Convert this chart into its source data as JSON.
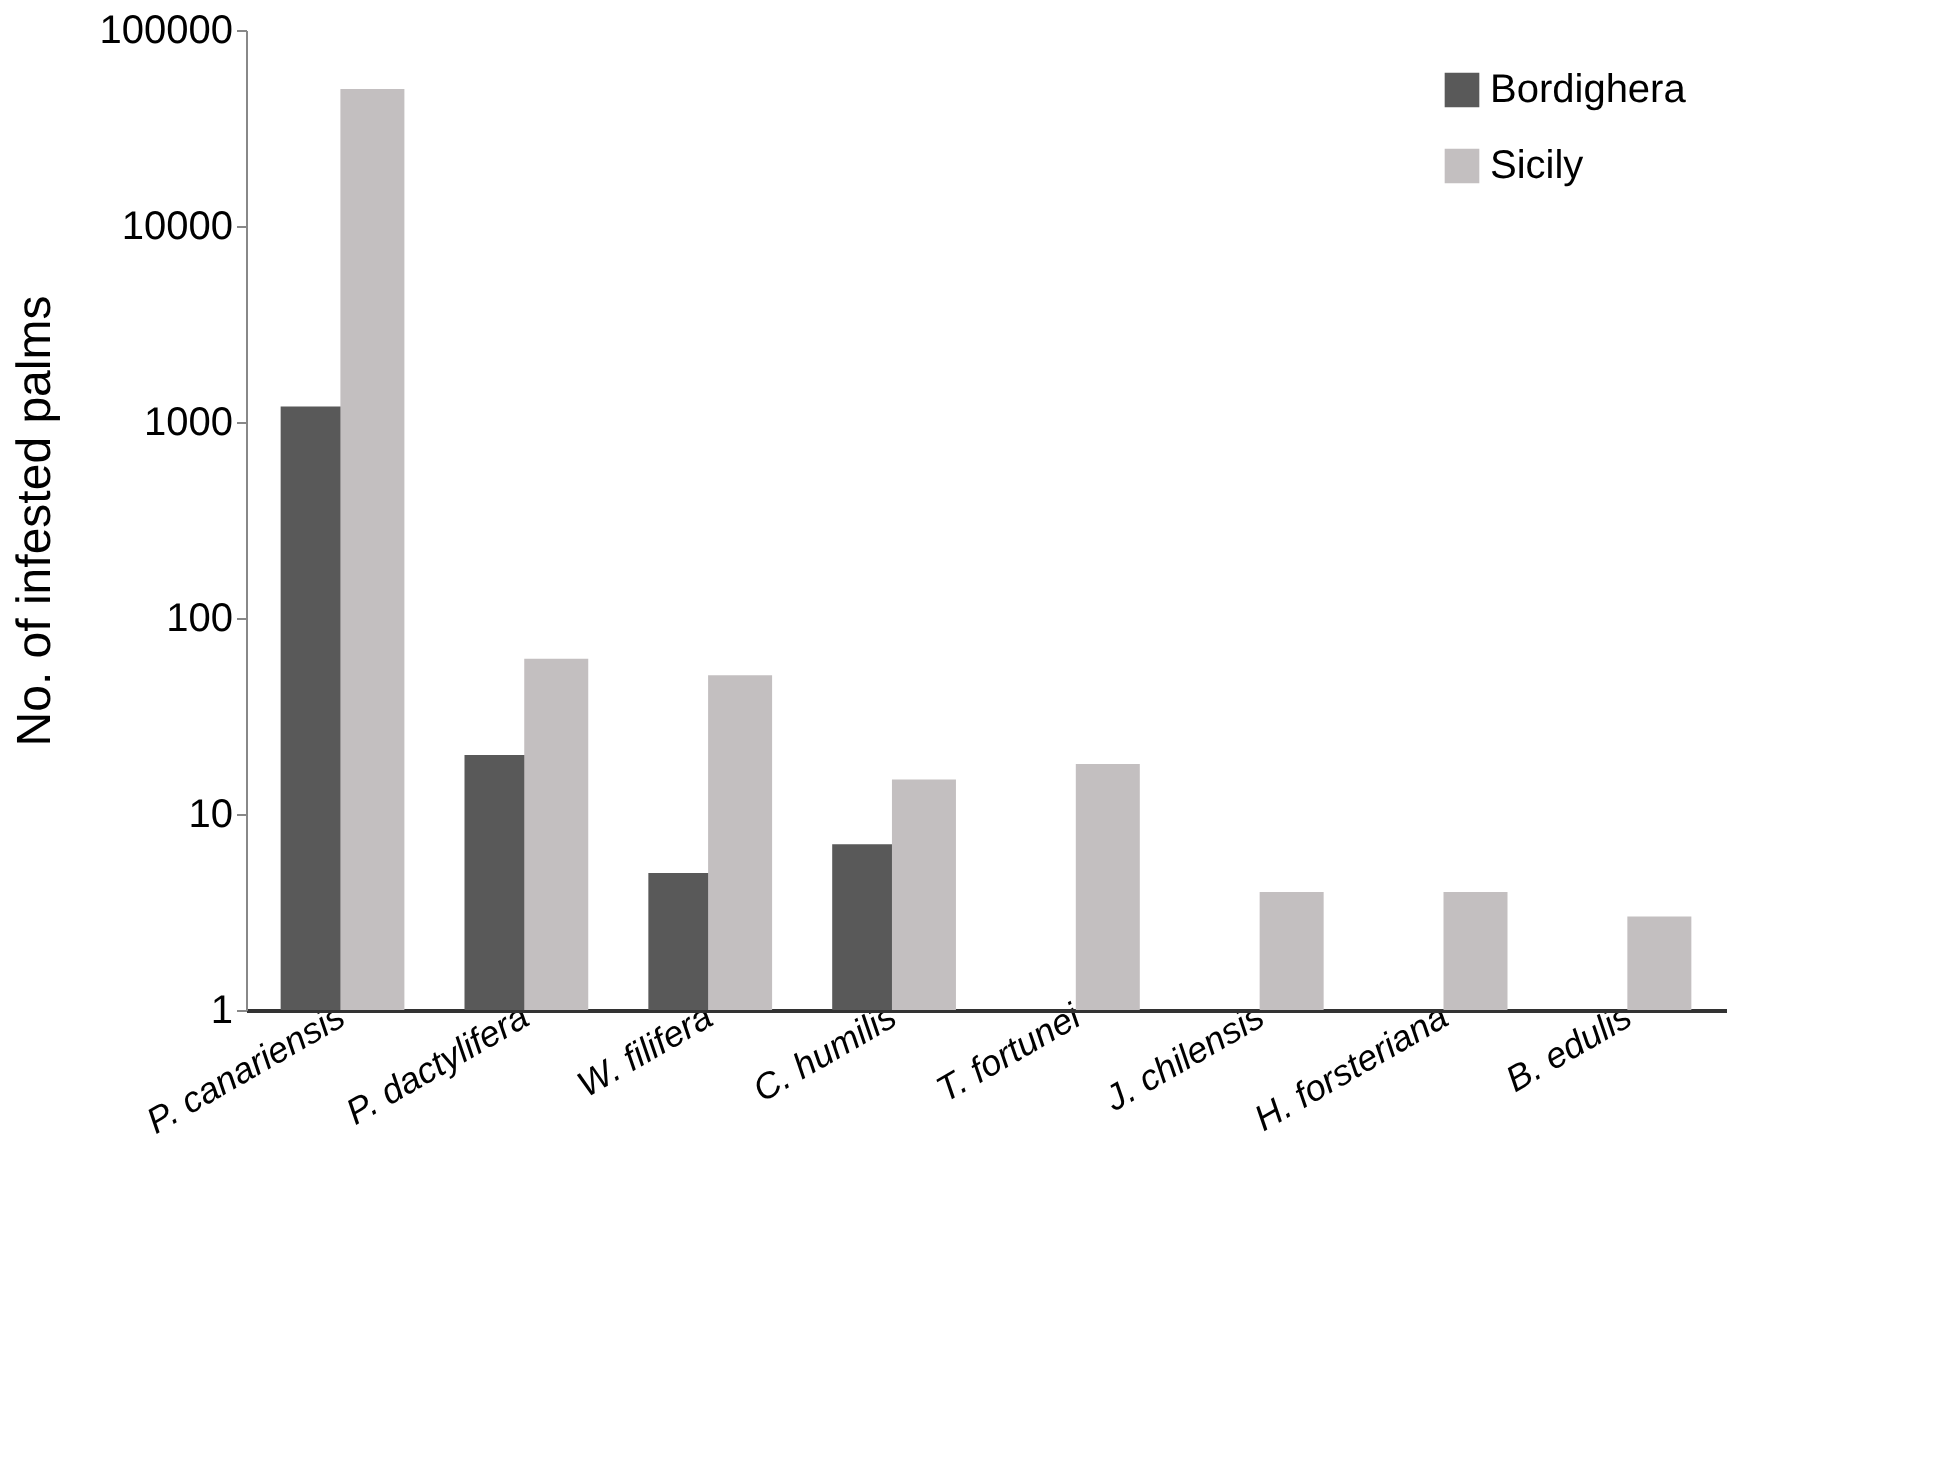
{
  "chart_data": {
    "type": "bar",
    "ylabel": "No. of infested palms",
    "categories": [
      "P. canariensis",
      "P. dactylifera",
      "W. filifera",
      "C. humilis",
      "T. fortunei",
      "J. chilensis",
      "H. forsteriana",
      "B. edulis"
    ],
    "series": [
      {
        "name": "Bordighera",
        "color": "#595959",
        "values": [
          1200,
          20,
          5,
          7,
          null,
          null,
          null,
          null
        ]
      },
      {
        "name": "Sicily",
        "color": "#c3bfc0",
        "values": [
          50000,
          62,
          51,
          15,
          18,
          4,
          4,
          3
        ]
      }
    ],
    "log": true,
    "ylim": [
      1,
      100000
    ],
    "yticks": [
      1,
      10,
      100,
      1000,
      10000,
      100000
    ],
    "grid": false,
    "legend": "top right"
  }
}
